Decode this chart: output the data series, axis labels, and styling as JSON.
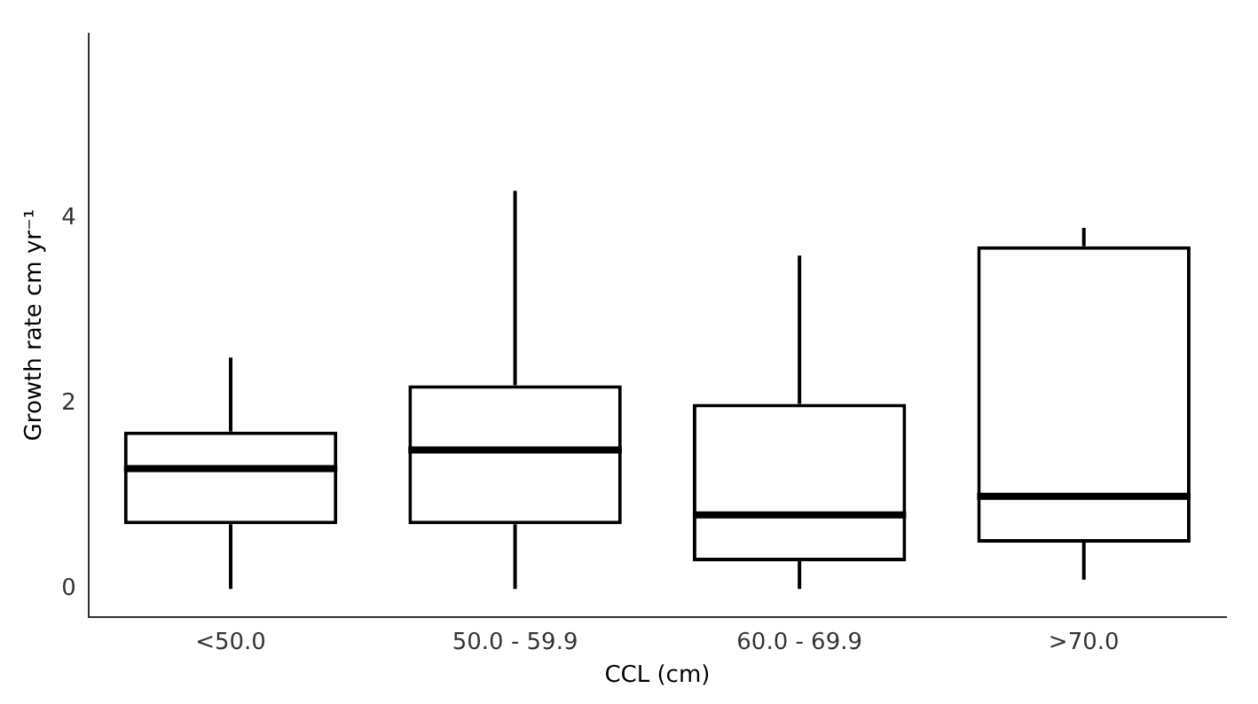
{
  "chart_data": {
    "type": "box",
    "xlabel": "CCL (cm)",
    "ylabel": "Growth rate cm yr⁻¹",
    "categories": [
      "<50.0",
      "50.0 - 59.9",
      "60.0 - 69.9",
      ">70.0"
    ],
    "boxes": [
      {
        "low": 0,
        "q1": 0.7,
        "median": 1.3,
        "q3": 1.7,
        "high": 2.5
      },
      {
        "low": 0,
        "q1": 0.7,
        "median": 1.5,
        "q3": 2.2,
        "high": 4.3
      },
      {
        "low": 0,
        "q1": 0.3,
        "median": 0.8,
        "q3": 2.0,
        "high": 3.6
      },
      {
        "low": 0.1,
        "q1": 0.5,
        "median": 1.0,
        "q3": 3.7,
        "high": 3.9
      }
    ],
    "color": "#000000",
    "ylim": [
      -0.3,
      6
    ],
    "yticks": [
      0,
      2,
      4
    ],
    "grid": false,
    "legend": false
  }
}
